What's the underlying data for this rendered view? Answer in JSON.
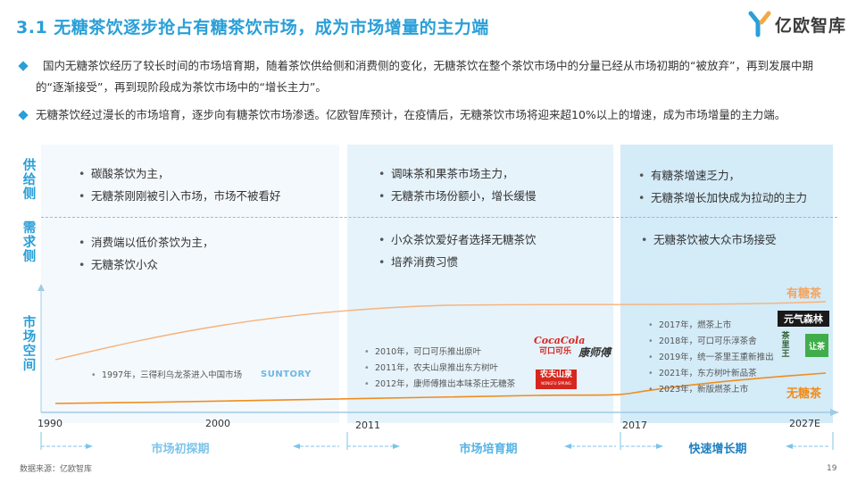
{
  "title": "3.1 无糖茶饮逐步抢占有糖茶饮市场，成为市场增量的主力端",
  "logo": {
    "text": "亿欧智库",
    "icon": "yiou-logo-icon"
  },
  "intro": [
    "国内无糖茶饮经历了较长时间的市场培育期，随着茶饮供给侧和消费侧的变化，无糖茶饮在整个茶饮市场中的分量已经从市场初期的“被放弃”，再到发展中期的“逐渐接受”，再到现阶段成为茶饮市场中的“增长主力”。",
    "无糖茶饮经过漫长的市场培育，逐步向有糖茶饮市场渗透。亿欧智库预计，在疫情后，无糖茶饮市场将迎来超10%以上的增速，成为市场增量的主力端。"
  ],
  "side_labels": {
    "supply": "供给侧",
    "demand": "需求侧",
    "market": "市场空间"
  },
  "supply": {
    "p1": [
      "碳酸茶饮为主，",
      "无糖茶刚刚被引入市场，市场不被看好"
    ],
    "p2": [
      "调味茶和果茶市场主力，",
      "无糖茶市场份额小，增长缓慢"
    ],
    "p3": [
      "有糖茶增速乏力，",
      "无糖茶增长加快成为拉动的主力"
    ]
  },
  "demand": {
    "p1": [
      "消费端以低价茶饮为主，",
      "无糖茶饮小众"
    ],
    "p2": [
      "小众茶饮爱好者选择无糖茶饮",
      "培养消费习惯"
    ],
    "p3": [
      "无糖茶饮被大众市场接受"
    ]
  },
  "milestones": {
    "p1": [
      "1997年，三得利乌龙茶进入中国市场"
    ],
    "p2": [
      "2010年，可口可乐推出原叶",
      "2011年，农夫山泉推出东方树叶",
      "2012年，康师傅推出本味茶庄无糖茶"
    ],
    "p3": [
      "2017年，燃茶上市",
      "2018年，可口可乐淳茶舍",
      "2019年，统一茶里王重新推出",
      "2021年，东方树叶新品茶",
      "2023年，新版燃茶上市"
    ]
  },
  "brands": {
    "suntory": "SUNTORY",
    "cocacola_en": "CocaCola",
    "cocacola_cn": "可口可乐",
    "kangshifu": "康师傅",
    "nongfu": "农夫山泉",
    "nongfu_en": "NONGFU SPRING",
    "yuanqi": "元气森林",
    "chaliwang": "茶里王",
    "rangcha": "让茶"
  },
  "legend": {
    "sugar": "有糖茶",
    "nosugar": "无糖茶"
  },
  "axis_ticks": [
    "1990",
    "2000",
    "2011",
    "2017",
    "2027E"
  ],
  "phases": [
    "市场初探期",
    "市场培育期",
    "快速增长期"
  ],
  "colors": {
    "accent": "#2a9fd8",
    "sugar": "#f4a460",
    "nosugar": "#f08c1c",
    "brand_red": "#d7261e"
  },
  "footer": "数据来源：亿欧智库",
  "page_number": "19"
}
